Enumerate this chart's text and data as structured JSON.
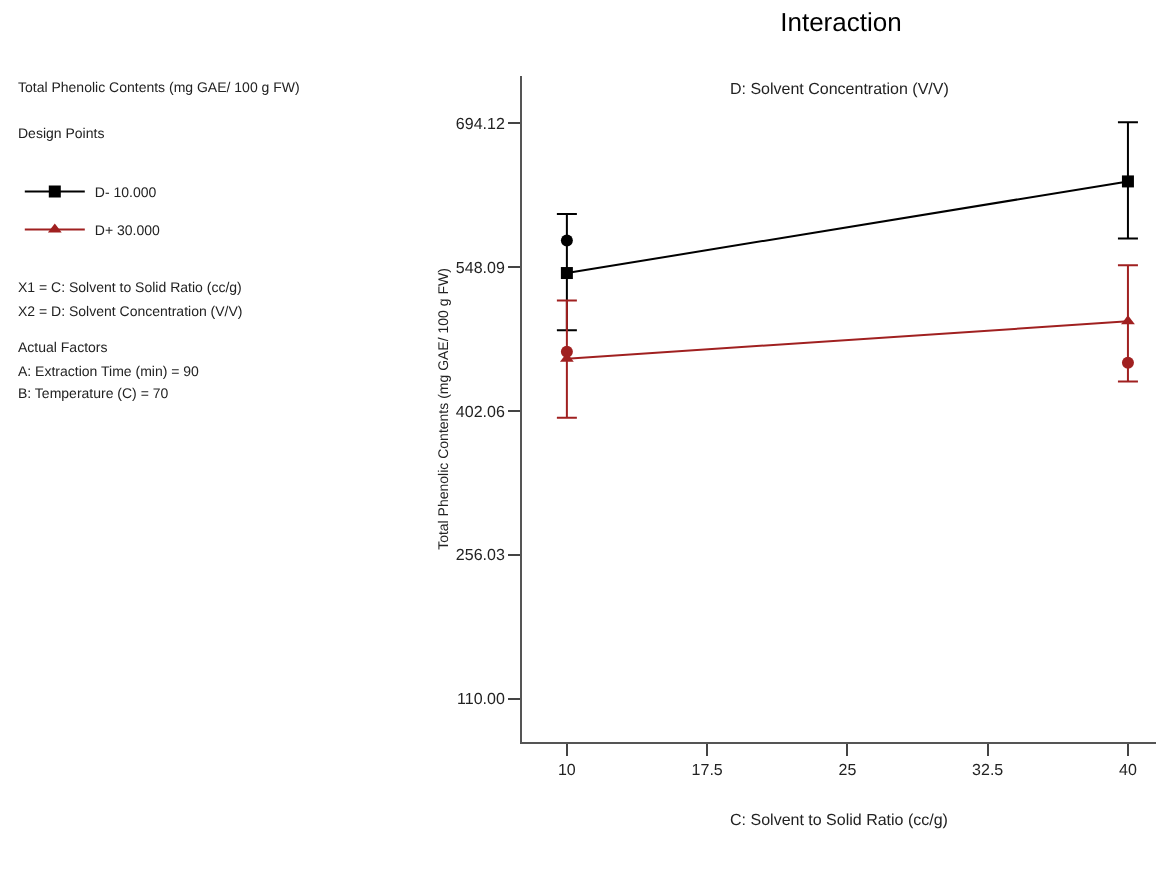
{
  "chart_data": {
    "type": "line",
    "title": "Interaction",
    "subtitle": "D: Solvent Concentration (V/V)",
    "xlabel": "C: Solvent to Solid Ratio (cc/g)",
    "ylabel": "Total Phenolic Contents (mg GAE/ 100 g FW)",
    "x": [
      10,
      40
    ],
    "series": [
      {
        "type": "scatter",
        "marker": "circle",
        "color": "#000000",
        "values": [
          575,
          null
        ]
      },
      {
        "type": "scatter",
        "marker": "circle",
        "color": "#a02020",
        "values": [
          462,
          451
        ]
      },
      {
        "name": "D- 10.000",
        "color": "#000000",
        "marker": "square",
        "values": [
          542,
          635
        ],
        "errors": [
          [
            484,
            602
          ],
          [
            577,
            695
          ]
        ]
      },
      {
        "name": "D+ 30.000",
        "color": "#a02020",
        "marker": "triangle",
        "values": [
          455,
          493
        ],
        "errors": [
          [
            395,
            514
          ],
          [
            432,
            550
          ]
        ]
      }
    ],
    "xlim": [
      7.6,
      41.5
    ],
    "xticks": [
      10,
      17.5,
      25,
      32.5,
      40
    ],
    "ylim": [
      66,
      742
    ],
    "yticks": [
      {
        "value": 110,
        "label": "110.00"
      },
      256.03,
      402.06,
      548.09,
      694.12
    ],
    "grid": false,
    "legend": "top left",
    "annotations": [
      "Total Phenolic Contents (mg GAE/ 100 g FW)",
      "Design Points",
      "X1 = C: Solvent to Solid Ratio (cc/g)",
      "X2 = D: Solvent Concentration (V/V)",
      "Actual Factors",
      "A: Extraction Time (min) = 90",
      "B: Temperature (C) = 70"
    ]
  }
}
